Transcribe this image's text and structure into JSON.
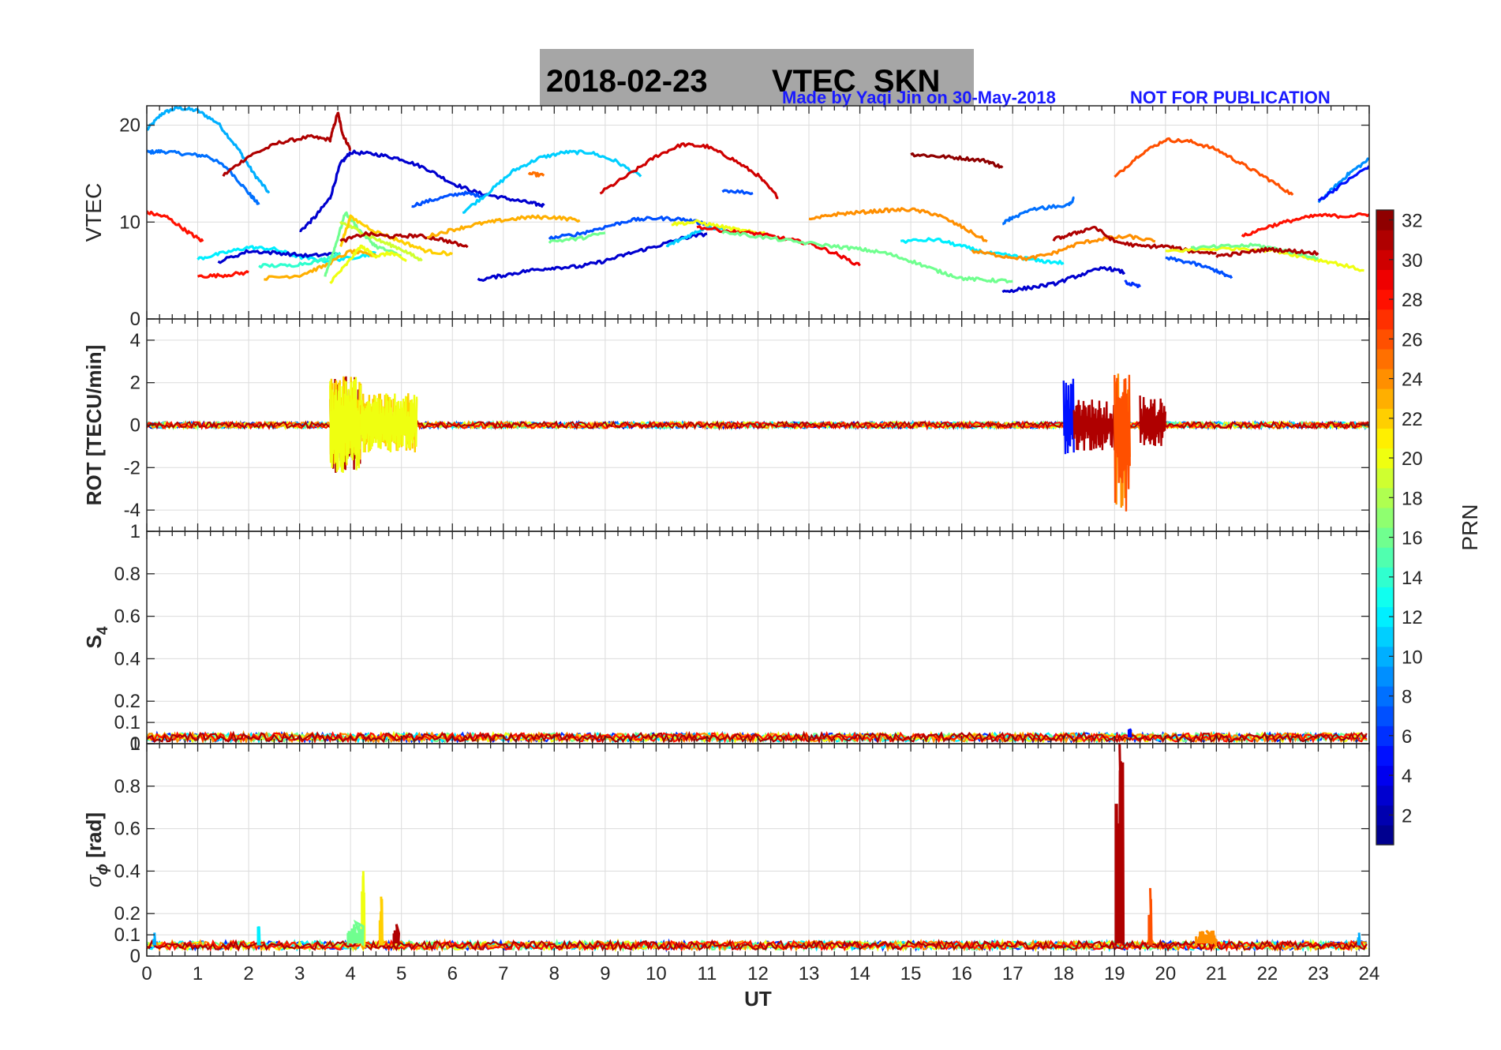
{
  "title": {
    "date": "2018-02-23",
    "text": "VTEC  SKN",
    "credit": "Made by Yaqi Jin on 30-May-2018",
    "notice": "NOT FOR PUBLICATION",
    "credit_color": "#1a1aff"
  },
  "chart_data": [
    {
      "id": "vtec",
      "type": "line",
      "ylabel": "VTEC",
      "xlim": [
        0,
        24
      ],
      "ylim": [
        0,
        22
      ],
      "yticks": [
        0,
        10,
        20
      ],
      "grid": true,
      "series": [
        {
          "prn": 10,
          "x": [
            0,
            0.3,
            0.6,
            1.0,
            1.4,
            1.8,
            2.1,
            2.4
          ],
          "y": [
            19.5,
            21.2,
            21.8,
            21.5,
            20.2,
            17.5,
            15.0,
            13.0
          ]
        },
        {
          "prn": 8,
          "x": [
            0,
            0.3,
            0.8,
            1.2,
            1.6,
            2.0,
            2.2
          ],
          "y": [
            17.2,
            17.3,
            17.0,
            16.8,
            15.5,
            13.0,
            11.8
          ]
        },
        {
          "prn": 31,
          "x": [
            1.5,
            2.0,
            2.6,
            3.2,
            3.6,
            3.75,
            3.85,
            4.0
          ],
          "y": [
            14.8,
            16.8,
            18.2,
            18.8,
            18.5,
            21.3,
            19.0,
            17.5
          ]
        },
        {
          "prn": 3,
          "x": [
            3.0,
            3.3,
            3.6,
            3.8,
            4.0,
            4.5,
            5.0,
            5.5,
            6.0,
            6.5,
            7.0,
            7.5,
            7.8
          ],
          "y": [
            9.0,
            10.5,
            12.5,
            16.0,
            17.2,
            17.0,
            16.5,
            15.5,
            14.0,
            13.0,
            12.5,
            12.0,
            11.7
          ]
        },
        {
          "prn": 7,
          "x": [
            5.2,
            5.7,
            6.2,
            6.6
          ],
          "y": [
            11.7,
            12.4,
            13.0,
            12.7
          ]
        },
        {
          "prn": 11,
          "x": [
            6.2,
            6.7,
            7.2,
            7.7,
            8.2,
            8.7,
            9.2,
            9.7
          ],
          "y": [
            11.0,
            13.0,
            15.3,
            16.6,
            17.2,
            17.2,
            16.3,
            14.7
          ]
        },
        {
          "prn": 25,
          "x": [
            7.5,
            7.8
          ],
          "y": [
            15.0,
            14.8
          ]
        },
        {
          "prn": 30,
          "x": [
            8.9,
            9.5,
            10.0,
            10.5,
            11.0,
            11.5,
            12.0,
            12.4
          ],
          "y": [
            13.0,
            15.0,
            16.8,
            18.0,
            17.8,
            16.5,
            14.8,
            12.5
          ]
        },
        {
          "prn": 7,
          "x": [
            11.3,
            11.9
          ],
          "y": [
            13.3,
            13.0
          ]
        },
        {
          "prn": 32,
          "x": [
            15.0,
            15.5,
            16.0,
            16.5,
            16.8
          ],
          "y": [
            17.0,
            16.8,
            16.6,
            16.3,
            15.6
          ]
        },
        {
          "prn": 26,
          "x": [
            19.0,
            19.5,
            20.0,
            20.5,
            21.0,
            21.5,
            22.0,
            22.5
          ],
          "y": [
            14.6,
            17.0,
            18.5,
            18.3,
            17.5,
            16.0,
            14.5,
            12.8
          ]
        },
        {
          "prn": 8,
          "x": [
            18.2,
            18.1,
            17.5,
            17.0,
            16.8
          ],
          "y": [
            12.4,
            11.8,
            11.4,
            10.5,
            9.8
          ]
        },
        {
          "prn": 9,
          "x": [
            23.0,
            23.3,
            23.6,
            24.0
          ],
          "y": [
            12.0,
            13.5,
            15.0,
            16.5
          ]
        },
        {
          "prn": 5,
          "x": [
            23.0,
            23.5,
            24.0
          ],
          "y": [
            12.2,
            14.0,
            15.8
          ]
        },
        {
          "prn": 28,
          "x": [
            0,
            0.4,
            0.8,
            1.1
          ],
          "y": [
            11.0,
            10.5,
            9.0,
            8.0
          ]
        },
        {
          "prn": 28,
          "x": [
            1.0,
            1.5,
            2.0
          ],
          "y": [
            4.4,
            4.5,
            4.8
          ]
        },
        {
          "prn": 12,
          "x": [
            1.0,
            1.5,
            2.0,
            2.5,
            3.0,
            3.5,
            4.0,
            4.5
          ],
          "y": [
            6.2,
            6.8,
            7.4,
            7.2,
            6.4,
            6.0,
            6.3,
            6.8
          ]
        },
        {
          "prn": 3,
          "x": [
            1.4,
            2.0,
            2.6,
            3.2,
            3.8
          ],
          "y": [
            5.9,
            7.0,
            6.8,
            6.5,
            6.8
          ]
        },
        {
          "prn": 14,
          "x": [
            2.2,
            2.8,
            3.4,
            3.8
          ],
          "y": [
            5.5,
            5.5,
            6.0,
            6.8
          ]
        },
        {
          "prn": 23,
          "x": [
            2.3,
            3.0,
            3.5,
            4.0,
            4.5
          ],
          "y": [
            4.2,
            4.5,
            5.5,
            7.0,
            6.5
          ]
        },
        {
          "prn": 16,
          "x": [
            3.5,
            3.7,
            3.9,
            4.2,
            4.5,
            5.0
          ],
          "y": [
            4.5,
            7.5,
            11.0,
            9.0,
            7.5,
            6.5
          ]
        },
        {
          "prn": 20,
          "x": [
            3.6,
            3.9,
            4.2,
            4.5,
            4.8,
            5.1
          ],
          "y": [
            3.8,
            5.5,
            7.5,
            6.5,
            6.8,
            6.0
          ]
        },
        {
          "prn": 19,
          "x": [
            3.8,
            4.2,
            4.6,
            5.0,
            5.4
          ],
          "y": [
            10.0,
            9.0,
            8.0,
            7.2,
            6.0
          ]
        },
        {
          "prn": 22,
          "x": [
            3.8,
            4.0,
            4.5,
            5.0,
            5.5,
            6.0
          ],
          "y": [
            7.5,
            10.5,
            9.0,
            8.0,
            7.0,
            6.7
          ]
        },
        {
          "prn": 31,
          "x": [
            3.8,
            4.3,
            4.8,
            5.3,
            5.8,
            6.3
          ],
          "y": [
            8.0,
            8.8,
            8.5,
            8.6,
            8.2,
            7.4
          ]
        },
        {
          "prn": 23,
          "x": [
            5.5,
            6.0,
            6.5,
            7.0,
            7.5,
            8.0,
            8.5
          ],
          "y": [
            8.5,
            9.2,
            9.8,
            10.2,
            10.5,
            10.5,
            10.2
          ]
        },
        {
          "prn": 3,
          "x": [
            6.5,
            7.0,
            7.5,
            8.0,
            8.5,
            9.0,
            9.5,
            10.0,
            10.5,
            11.0
          ],
          "y": [
            4.0,
            4.5,
            5.0,
            5.3,
            5.4,
            6.0,
            6.8,
            7.5,
            8.3,
            8.8
          ]
        },
        {
          "prn": 7,
          "x": [
            7.9,
            8.5,
            9.0,
            9.5,
            10.0,
            10.5,
            11.0
          ],
          "y": [
            8.3,
            8.8,
            9.5,
            10.2,
            10.4,
            10.3,
            9.8
          ]
        },
        {
          "prn": 16,
          "x": [
            7.9,
            8.5,
            9.0
          ],
          "y": [
            8.0,
            8.3,
            8.9
          ]
        },
        {
          "prn": 11,
          "x": [
            10.2,
            10.6,
            11.0,
            11.4
          ],
          "y": [
            7.5,
            8.5,
            9.5,
            9.2
          ]
        },
        {
          "prn": 20,
          "x": [
            10.3,
            10.8,
            11.3,
            11.8,
            12.2
          ],
          "y": [
            9.8,
            10.0,
            9.5,
            9.0,
            8.8
          ]
        },
        {
          "prn": 29,
          "x": [
            10.8,
            11.5,
            12.0,
            12.5,
            13.0,
            13.5,
            14.0
          ],
          "y": [
            9.5,
            9.0,
            8.8,
            8.3,
            7.8,
            6.8,
            5.5
          ]
        },
        {
          "prn": 16,
          "x": [
            11.3,
            12.0,
            12.7,
            13.5,
            14.0,
            14.5,
            15.0,
            15.5,
            16.0,
            16.5,
            17.0
          ],
          "y": [
            9.0,
            8.5,
            8.0,
            7.5,
            7.2,
            6.8,
            6.0,
            5.0,
            4.2,
            4.0,
            3.9
          ]
        },
        {
          "prn": 24,
          "x": [
            13.0,
            13.5,
            14.0,
            14.5,
            15.0,
            15.5,
            16.0,
            16.5
          ],
          "y": [
            10.2,
            10.8,
            11.0,
            11.2,
            11.3,
            10.8,
            9.5,
            8.0
          ]
        },
        {
          "prn": 12,
          "x": [
            14.8,
            15.5,
            16.0,
            16.5,
            17.0,
            17.5,
            18.0
          ],
          "y": [
            8.0,
            8.2,
            7.5,
            6.8,
            6.5,
            6.0,
            5.8
          ]
        },
        {
          "prn": 24,
          "x": [
            16.2,
            16.8,
            17.3,
            17.8,
            18.3,
            18.8,
            19.3,
            19.8
          ],
          "y": [
            7.0,
            6.5,
            6.2,
            6.8,
            7.8,
            8.3,
            8.5,
            8.0
          ]
        },
        {
          "prn": 31,
          "x": [
            17.8,
            18.2,
            18.6,
            19.0,
            19.5,
            20.0,
            20.5,
            21.0
          ],
          "y": [
            8.2,
            8.8,
            9.5,
            8.0,
            7.5,
            7.5,
            7.0,
            6.8
          ]
        },
        {
          "prn": 3,
          "x": [
            16.8,
            17.3,
            17.8,
            18.3,
            18.8,
            19.2
          ],
          "y": [
            2.8,
            3.2,
            3.6,
            4.5,
            5.3,
            4.8
          ]
        },
        {
          "prn": 6,
          "x": [
            19.2,
            19.5
          ],
          "y": [
            3.8,
            3.3
          ]
        },
        {
          "prn": 7,
          "x": [
            20.0,
            20.5,
            21.0,
            21.3
          ],
          "y": [
            6.3,
            5.8,
            5.0,
            4.2
          ]
        },
        {
          "prn": 20,
          "x": [
            20.0,
            20.8,
            21.5,
            22.2,
            22.8,
            23.3,
            23.9
          ],
          "y": [
            7.0,
            7.2,
            7.3,
            7.0,
            6.3,
            5.8,
            5.0
          ]
        },
        {
          "prn": 16,
          "x": [
            20.5,
            21.2,
            21.8,
            22.4,
            23.0
          ],
          "y": [
            7.3,
            7.5,
            7.6,
            7.0,
            6.3
          ]
        },
        {
          "prn": 28,
          "x": [
            21.5,
            22.0,
            22.5,
            23.0,
            23.5,
            24.0
          ],
          "y": [
            8.5,
            9.5,
            10.2,
            10.7,
            10.6,
            10.8
          ]
        },
        {
          "prn": 31,
          "x": [
            21.0,
            21.5,
            22.0,
            22.5,
            23.0
          ],
          "y": [
            6.5,
            6.8,
            7.2,
            7.0,
            6.8
          ]
        }
      ]
    },
    {
      "id": "rot",
      "type": "line",
      "ylabel": "ROT [TECU/min]",
      "xlim": [
        0,
        24
      ],
      "ylim": [
        -5,
        5
      ],
      "yticks": [
        -4,
        -2,
        0,
        2,
        4
      ],
      "grid": true,
      "noise_events": [
        {
          "x": [
            3.6,
            4.2
          ],
          "peak": 2.3,
          "trough": -2.3,
          "prn": [
            31,
            22,
            20
          ]
        },
        {
          "x": [
            4.2,
            5.3
          ],
          "peak": 1.5,
          "trough": -1.3,
          "prn": [
            22,
            20
          ]
        },
        {
          "x": [
            18.0,
            18.2
          ],
          "peak": 2.2,
          "trough": -1.5,
          "prn": [
            5
          ]
        },
        {
          "x": [
            18.2,
            19.0
          ],
          "peak": 1.2,
          "trough": -1.2,
          "prn": [
            31
          ]
        },
        {
          "x": [
            19.0,
            19.3
          ],
          "peak": 2.5,
          "trough": -4.4,
          "prn": [
            24,
            26
          ]
        },
        {
          "x": [
            19.5,
            20.0
          ],
          "peak": 1.4,
          "trough": -1.0,
          "prn": [
            31
          ]
        }
      ],
      "baseline_amplitude": 0.15
    },
    {
      "id": "s4",
      "type": "line",
      "ylabel": "S",
      "ylabel_sub": "4",
      "xlim": [
        0,
        24
      ],
      "ylim": [
        0,
        1
      ],
      "yticks": [
        0,
        0.1,
        0.2,
        0.4,
        0.6,
        0.8,
        1
      ],
      "ytick_labels": [
        "0",
        "0.1",
        "0.2",
        "0.4",
        "0.6",
        "0.8",
        "1"
      ],
      "grid": true,
      "baseline": 0.03,
      "baseline_amplitude": 0.02,
      "spikes": [
        {
          "x": 19.3,
          "y": 0.07,
          "prn": 5
        }
      ]
    },
    {
      "id": "sigma_phi",
      "type": "line",
      "ylabel": "σ",
      "ylabel_sub": "ϕ",
      "ylabel_rest": " [rad]",
      "xlabel": "UT",
      "xlim": [
        0,
        24
      ],
      "ylim": [
        0,
        1
      ],
      "yticks": [
        0,
        0.1,
        0.2,
        0.4,
        0.6,
        0.8,
        1
      ],
      "ytick_labels": [
        "0",
        "0.1",
        "0.2",
        "0.4",
        "0.6",
        "0.8",
        "1"
      ],
      "xticks": [
        0,
        1,
        2,
        3,
        4,
        5,
        6,
        7,
        8,
        9,
        10,
        11,
        12,
        13,
        14,
        15,
        16,
        17,
        18,
        19,
        20,
        21,
        22,
        23,
        24
      ],
      "grid": true,
      "baseline": 0.05,
      "baseline_amplitude": 0.02,
      "spikes": [
        {
          "x": 19.1,
          "y": 1.0,
          "prn": 31,
          "width": 0.15
        },
        {
          "x": 19.7,
          "y": 0.32,
          "prn": 26,
          "width": 0.05
        },
        {
          "x": 4.25,
          "y": 0.4,
          "prn": 20,
          "width": 0.05
        },
        {
          "x": 4.6,
          "y": 0.28,
          "prn": 22,
          "width": 0.05
        },
        {
          "x": 4.1,
          "y": 0.16,
          "prn": 16,
          "width": 0.3
        },
        {
          "x": 4.9,
          "y": 0.15,
          "prn": 31,
          "width": 0.1
        },
        {
          "x": 2.2,
          "y": 0.14,
          "prn": 12,
          "width": 0.03
        },
        {
          "x": 0.15,
          "y": 0.11,
          "prn": 10,
          "width": 0.03
        },
        {
          "x": 23.8,
          "y": 0.11,
          "prn": 10,
          "width": 0.03
        },
        {
          "x": 20.8,
          "y": 0.12,
          "prn": 24,
          "width": 0.4
        }
      ]
    }
  ],
  "colorbar": {
    "label": "PRN",
    "min": 1,
    "max": 32,
    "ticks": [
      2,
      4,
      6,
      8,
      10,
      12,
      14,
      16,
      18,
      20,
      22,
      24,
      26,
      28,
      30,
      32
    ]
  }
}
